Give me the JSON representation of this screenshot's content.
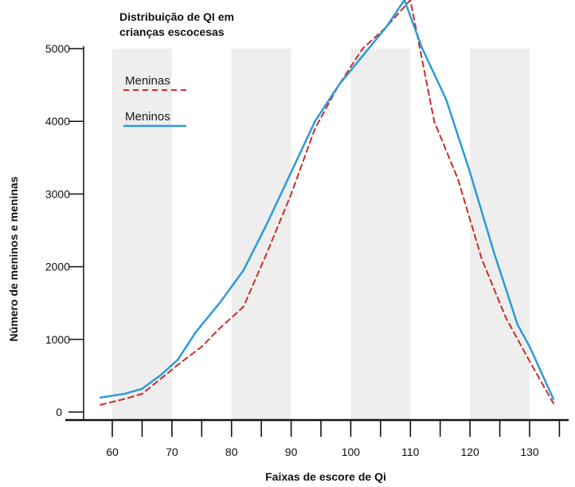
{
  "chart_data": {
    "type": "line",
    "title_lines": [
      "Distribuição de QI em",
      "crianças escocesas"
    ],
    "xlabel": "Faixas de escore de Qi",
    "ylabel": "Número de meninos e meninas",
    "xlim": [
      55,
      135
    ],
    "ylim": [
      0,
      5000
    ],
    "x_ticks": [
      60,
      70,
      80,
      90,
      100,
      110,
      120,
      130
    ],
    "y_ticks": [
      0,
      1000,
      2000,
      3000,
      4000,
      5000
    ],
    "shaded_bands": [
      [
        60,
        70
      ],
      [
        80,
        90
      ],
      [
        100,
        110
      ],
      [
        120,
        130
      ]
    ],
    "legend_position": "top-left",
    "series": [
      {
        "name": "Meninas",
        "color": "#cc2a2a",
        "style": "dashed",
        "x": [
          58,
          62,
          65,
          68,
          71,
          75,
          78,
          82,
          86,
          90,
          94,
          98,
          102,
          106,
          110,
          114,
          118,
          122,
          126,
          130,
          134
        ],
        "y": [
          100,
          180,
          250,
          450,
          650,
          900,
          1150,
          1450,
          2200,
          3000,
          3900,
          4500,
          5000,
          5300,
          5900,
          4000,
          3200,
          2100,
          1300,
          700,
          120
        ]
      },
      {
        "name": "Meninos",
        "color": "#2b9bd9",
        "style": "solid",
        "x": [
          58,
          62,
          65,
          68,
          71,
          74,
          78,
          82,
          86,
          90,
          94,
          98,
          102,
          106,
          109,
          112,
          116,
          120,
          124,
          128,
          130,
          134
        ],
        "y": [
          200,
          250,
          320,
          500,
          720,
          1100,
          1500,
          1950,
          2600,
          3300,
          4000,
          4500,
          4900,
          5300,
          5700,
          5000,
          4300,
          3300,
          2200,
          1200,
          900,
          180
        ]
      }
    ]
  }
}
